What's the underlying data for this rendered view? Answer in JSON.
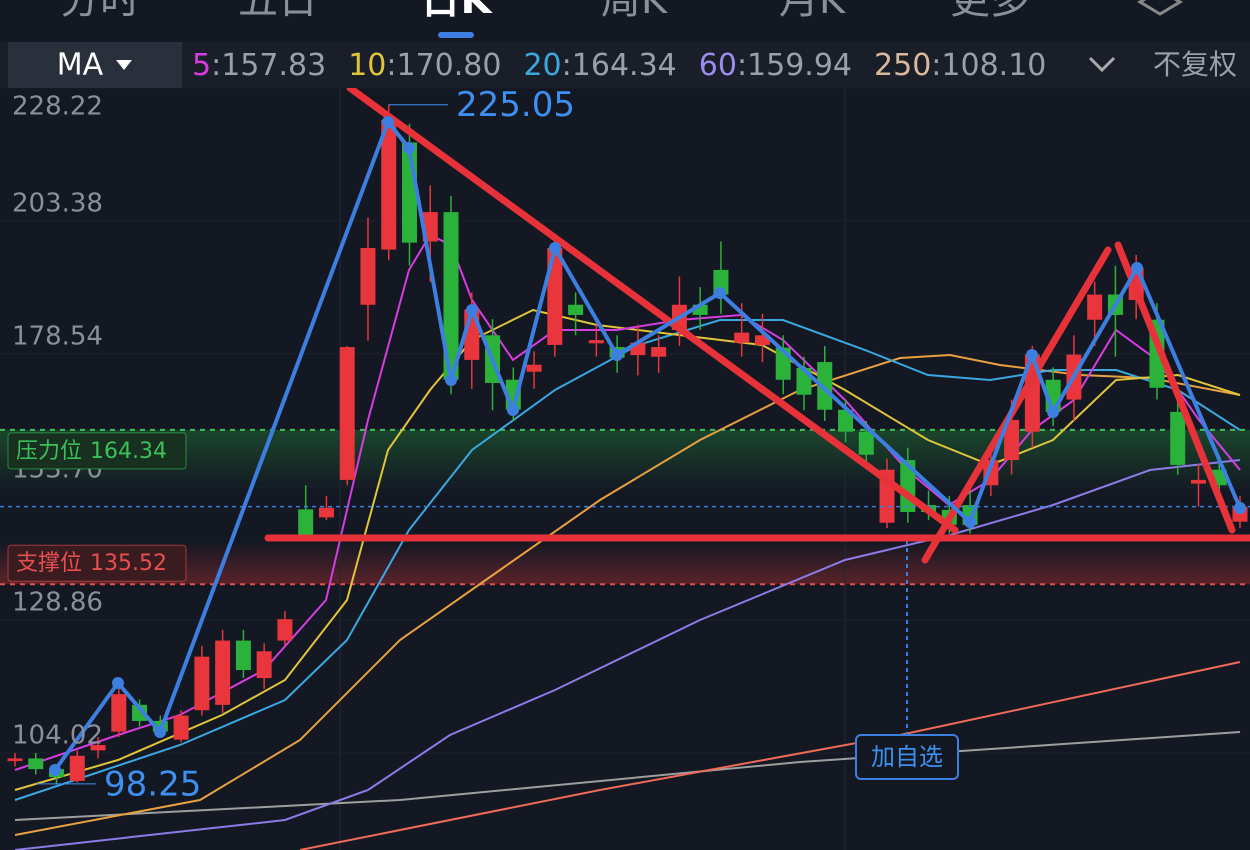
{
  "tabs": [
    "分时",
    "五日",
    "日K",
    "周K",
    "月K",
    "更多"
  ],
  "active_tab": 2,
  "ma_bar": {
    "selector": "MA",
    "items": [
      {
        "period": "5",
        "value": "157.83",
        "color": "#d63de0"
      },
      {
        "period": "10",
        "value": "170.80",
        "color": "#e0c43a"
      },
      {
        "period": "20",
        "value": "164.34",
        "color": "#3aa8e0"
      },
      {
        "period": "60",
        "value": "159.94",
        "color": "#9b8cf0"
      },
      {
        "period": "250",
        "value": "108.10",
        "color": "#d9b99b"
      }
    ],
    "adjust": "不复权"
  },
  "button": "加自选",
  "chart_data": {
    "type": "candlestick",
    "ylim": [
      85.9,
      244.6
    ],
    "yticks": [
      228.22,
      203.38,
      178.54,
      {
        "value": 153.7,
        "label": "153.70"
      },
      128.86,
      104.02
    ],
    "color_up": "#e8363c",
    "color_down": "#2bb23b",
    "max_value": 225.05,
    "min_value": 98.25,
    "levels": [
      {
        "label": "压力位",
        "value": 164.34,
        "color": "#3cc05a"
      },
      {
        "label": "支撑位",
        "value": 135.52,
        "color": "#e85050"
      }
    ],
    "open": [
      102.5,
      103,
      101,
      98.8,
      104.5,
      108,
      113,
      110,
      106.5,
      112,
      113,
      125,
      118,
      125,
      149.5,
      148,
      155,
      187.7,
      198,
      218,
      199.5,
      205,
      177.4,
      182,
      173.7,
      175.2,
      180.2,
      187.7,
      180.5,
      179.8,
      178.3,
      178,
      183,
      187.7,
      194.2,
      180.6,
      180.2,
      179.7,
      175.9,
      177,
      168.1,
      164,
      147,
      158.7,
      150.3,
      149.4,
      150.3,
      154,
      158.7,
      164,
      173.7,
      170,
      184.9,
      189.6,
      188.6,
      184.9,
      167.7,
      154.3,
      156.9,
      147.2
    ],
    "high": [
      104,
      104,
      101.5,
      104.5,
      107,
      117.5,
      114,
      111,
      112,
      124,
      127,
      127,
      124.5,
      130.5,
      154,
      152,
      180,
      204,
      225.05,
      221.5,
      210,
      208,
      190,
      185,
      176,
      179,
      200,
      190,
      184,
      182,
      184,
      182,
      193,
      191,
      199.5,
      188,
      186,
      182,
      178,
      180,
      170,
      166,
      159,
      161,
      153,
      152,
      154,
      161,
      170,
      180,
      176,
      182,
      192,
      195,
      197,
      188,
      170,
      158,
      159,
      152
    ],
    "low": [
      101.5,
      100,
      98.25,
      98.5,
      103,
      107,
      109,
      107.5,
      106,
      111,
      111.5,
      118,
      116,
      124,
      143.5,
      147.5,
      154,
      181,
      196,
      195,
      192,
      171,
      172,
      168,
      166,
      172,
      178,
      182,
      178,
      175,
      174.5,
      175,
      180,
      183,
      186,
      178,
      177,
      171,
      168,
      166,
      162,
      157,
      146,
      147,
      147.5,
      145,
      145,
      152,
      156,
      161,
      165,
      166,
      180,
      178,
      185,
      170,
      156,
      150,
      152,
      146
    ],
    "close": [
      103,
      101,
      99.5,
      103.5,
      105.5,
      115,
      110,
      108,
      111,
      122,
      125,
      119.5,
      123,
      129,
      144.8,
      149.8,
      179.8,
      198.3,
      222.2,
      199.3,
      205,
      173.7,
      186.8,
      173.1,
      168.1,
      176.5,
      198.3,
      185.8,
      181.1,
      177.8,
      180.6,
      179.8,
      187.7,
      185.8,
      189.6,
      182.5,
      182,
      173.7,
      170.9,
      168.1,
      164,
      159.7,
      156.9,
      149,
      149,
      146.6,
      146.6,
      158.7,
      166.2,
      178.4,
      167.7,
      178.4,
      189.6,
      185.8,
      194.6,
      172.2,
      157.8,
      155,
      154,
      150
    ]
  }
}
